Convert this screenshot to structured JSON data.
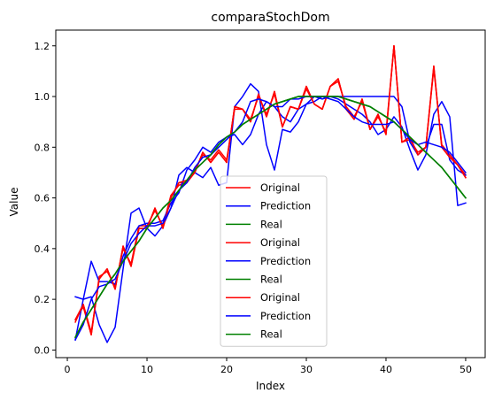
{
  "chart_data": {
    "type": "line",
    "title": "comparaStochDom",
    "xlabel": "Index",
    "ylabel": "Value",
    "xlim": [
      -1.45,
      52.45
    ],
    "ylim": [
      -0.03,
      1.262
    ],
    "x_ticks": [
      0,
      10,
      20,
      30,
      40,
      50
    ],
    "y_ticks": [
      0.0,
      0.2,
      0.4,
      0.6,
      0.8,
      1.0,
      1.2
    ],
    "x_tick_labels": [
      "0",
      "10",
      "20",
      "30",
      "40",
      "50"
    ],
    "y_tick_labels": [
      "0.0",
      "0.2",
      "0.4",
      "0.6",
      "0.8",
      "1.0",
      "1.2"
    ],
    "grid": false,
    "legend_position": "center-bottom",
    "x": [
      1,
      2,
      3,
      4,
      5,
      6,
      7,
      8,
      9,
      10,
      11,
      12,
      13,
      14,
      15,
      16,
      17,
      18,
      19,
      20,
      21,
      22,
      23,
      24,
      25,
      26,
      27,
      28,
      29,
      30,
      31,
      32,
      33,
      34,
      35,
      36,
      37,
      38,
      39,
      40,
      41,
      42,
      43,
      44,
      45,
      46,
      47,
      48,
      49,
      50
    ],
    "series": [
      {
        "name": "Original",
        "color": "#ff0000",
        "values": [
          0.12,
          0.18,
          0.06,
          0.28,
          0.32,
          0.24,
          0.41,
          0.33,
          0.48,
          0.48,
          0.56,
          0.48,
          0.6,
          0.66,
          0.66,
          0.7,
          0.78,
          0.74,
          0.78,
          0.74,
          0.96,
          0.95,
          0.9,
          1.01,
          0.92,
          1.02,
          0.88,
          0.96,
          0.95,
          1.04,
          0.97,
          0.95,
          1.04,
          1.07,
          0.95,
          0.91,
          0.99,
          0.87,
          0.93,
          0.85,
          1.2,
          0.82,
          0.84,
          0.77,
          0.8,
          1.12,
          0.8,
          0.76,
          0.73,
          0.68
        ]
      },
      {
        "name": "Prediction",
        "color": "#0000ff",
        "values": [
          0.21,
          0.2,
          0.21,
          0.1,
          0.03,
          0.09,
          0.32,
          0.54,
          0.56,
          0.48,
          0.45,
          0.49,
          0.56,
          0.69,
          0.72,
          0.7,
          0.68,
          0.72,
          0.65,
          0.66,
          0.96,
          1.0,
          1.05,
          1.02,
          0.81,
          0.71,
          0.87,
          0.86,
          0.9,
          0.97,
          1.0,
          0.99,
          1.0,
          0.99,
          0.97,
          0.95,
          0.93,
          0.9,
          0.85,
          0.87,
          0.92,
          0.88,
          0.79,
          0.71,
          0.77,
          0.93,
          0.98,
          0.92,
          0.57,
          0.58
        ]
      },
      {
        "name": "Real",
        "color": "#008000",
        "values": [
          0.05,
          0.11,
          0.16,
          0.21,
          0.26,
          0.3,
          0.35,
          0.39,
          0.43,
          0.48,
          0.52,
          0.56,
          0.59,
          0.63,
          0.67,
          0.71,
          0.74,
          0.77,
          0.81,
          0.84,
          0.86,
          0.89,
          0.91,
          0.93,
          0.95,
          0.97,
          0.98,
          0.99,
          1.0,
          1.0,
          1.0,
          1.0,
          1.0,
          1.0,
          0.99,
          0.98,
          0.97,
          0.96,
          0.94,
          0.92,
          0.9,
          0.87,
          0.84,
          0.81,
          0.78,
          0.75,
          0.72,
          0.68,
          0.64,
          0.6
        ]
      },
      {
        "name": "Original",
        "color": "#ff0000",
        "values": [
          0.12,
          0.17,
          0.06,
          0.29,
          0.31,
          0.25,
          0.4,
          0.34,
          0.49,
          0.49,
          0.55,
          0.49,
          0.61,
          0.65,
          0.66,
          0.71,
          0.77,
          0.75,
          0.79,
          0.75,
          0.95,
          0.95,
          0.91,
          1.0,
          0.93,
          1.01,
          0.88,
          0.96,
          0.95,
          1.03,
          0.97,
          0.95,
          1.04,
          1.06,
          0.96,
          0.92,
          0.98,
          0.87,
          0.92,
          0.86,
          1.2,
          0.82,
          0.83,
          0.78,
          0.8,
          1.11,
          0.81,
          0.77,
          0.73,
          0.69
        ]
      },
      {
        "name": "Prediction",
        "color": "#0000ff",
        "values": [
          0.04,
          0.2,
          0.35,
          0.27,
          0.27,
          0.26,
          0.37,
          0.44,
          0.49,
          0.5,
          0.5,
          0.51,
          0.58,
          0.62,
          0.71,
          0.75,
          0.8,
          0.78,
          0.82,
          0.84,
          0.85,
          0.81,
          0.85,
          0.93,
          0.98,
          0.96,
          0.92,
          0.9,
          0.95,
          0.97,
          0.98,
          1.0,
          1.0,
          1.0,
          1.0,
          1.0,
          1.0,
          1.0,
          1.0,
          1.0,
          1.0,
          0.96,
          0.82,
          0.77,
          0.8,
          0.89,
          0.89,
          0.75,
          0.71,
          0.69
        ]
      },
      {
        "name": "Real",
        "color": "#008000",
        "values": [
          0.05,
          0.11,
          0.16,
          0.21,
          0.26,
          0.3,
          0.35,
          0.39,
          0.43,
          0.48,
          0.52,
          0.56,
          0.59,
          0.63,
          0.67,
          0.71,
          0.74,
          0.77,
          0.81,
          0.84,
          0.86,
          0.89,
          0.91,
          0.93,
          0.95,
          0.97,
          0.98,
          0.99,
          1.0,
          1.0,
          1.0,
          1.0,
          1.0,
          1.0,
          0.99,
          0.98,
          0.97,
          0.96,
          0.94,
          0.92,
          0.9,
          0.87,
          0.84,
          0.81,
          0.78,
          0.75,
          0.72,
          0.68,
          0.64,
          0.6
        ]
      },
      {
        "name": "Original",
        "color": "#ff0000",
        "values": [
          0.11,
          0.18,
          0.07,
          0.28,
          0.32,
          0.24,
          0.41,
          0.33,
          0.48,
          0.48,
          0.56,
          0.48,
          0.6,
          0.66,
          0.67,
          0.7,
          0.78,
          0.74,
          0.78,
          0.74,
          0.96,
          0.95,
          0.9,
          1.01,
          0.92,
          1.02,
          0.88,
          0.96,
          0.95,
          1.04,
          0.97,
          0.95,
          1.04,
          1.07,
          0.95,
          0.91,
          0.99,
          0.87,
          0.93,
          0.85,
          1.2,
          0.82,
          0.84,
          0.77,
          0.8,
          1.12,
          0.8,
          0.76,
          0.73,
          0.68
        ]
      },
      {
        "name": "Prediction",
        "color": "#0000ff",
        "values": [
          0.04,
          0.1,
          0.2,
          0.25,
          0.26,
          0.28,
          0.35,
          0.42,
          0.46,
          0.49,
          0.49,
          0.5,
          0.56,
          0.63,
          0.66,
          0.72,
          0.76,
          0.77,
          0.8,
          0.83,
          0.86,
          0.9,
          0.98,
          0.99,
          0.98,
          0.96,
          0.96,
          0.99,
          0.99,
          1.0,
          1.0,
          1.0,
          0.99,
          0.98,
          0.95,
          0.92,
          0.9,
          0.89,
          0.89,
          0.89,
          0.9,
          0.87,
          0.83,
          0.81,
          0.82,
          0.81,
          0.8,
          0.78,
          0.74,
          0.7
        ]
      },
      {
        "name": "Real",
        "color": "#008000",
        "values": [
          0.05,
          0.11,
          0.16,
          0.21,
          0.26,
          0.3,
          0.35,
          0.39,
          0.43,
          0.48,
          0.52,
          0.56,
          0.59,
          0.63,
          0.67,
          0.71,
          0.74,
          0.77,
          0.81,
          0.84,
          0.86,
          0.89,
          0.91,
          0.93,
          0.95,
          0.97,
          0.98,
          0.99,
          1.0,
          1.0,
          1.0,
          1.0,
          1.0,
          1.0,
          0.99,
          0.98,
          0.97,
          0.96,
          0.94,
          0.92,
          0.9,
          0.87,
          0.84,
          0.81,
          0.78,
          0.75,
          0.72,
          0.68,
          0.64,
          0.6
        ]
      }
    ]
  }
}
